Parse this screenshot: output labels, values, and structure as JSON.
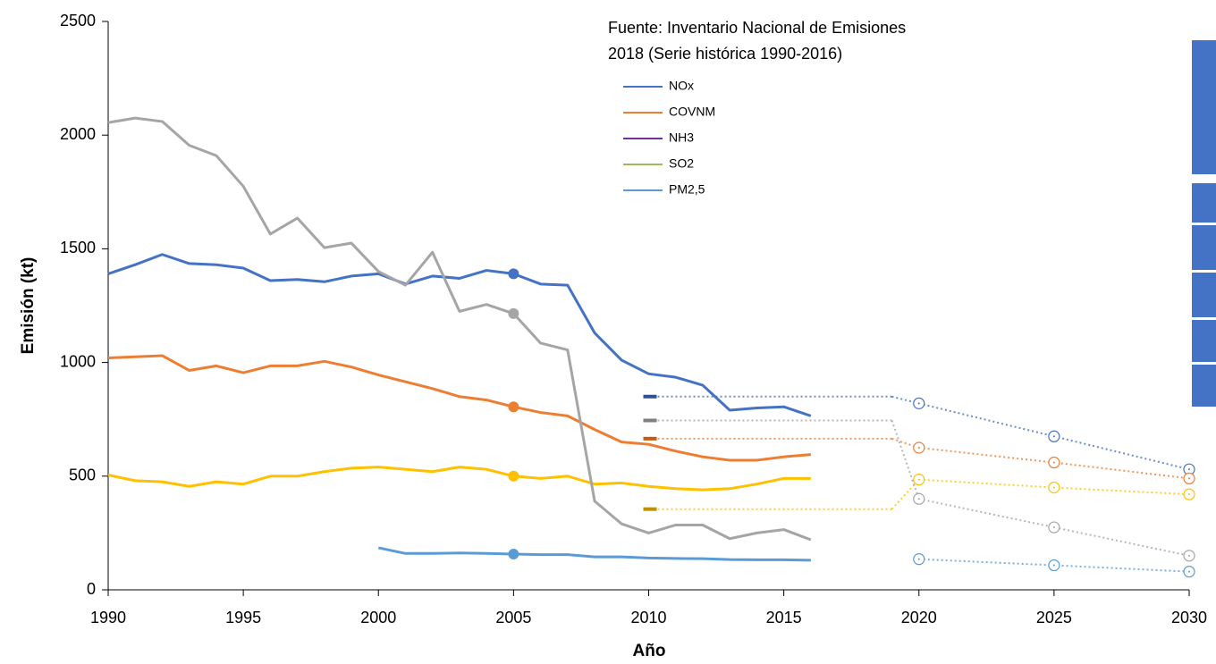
{
  "chart_data": {
    "type": "line",
    "annotation": [
      "Fuente: Inventario Nacional de Emisiones",
      "2018 (Serie histórica 1990-2016)"
    ],
    "xlabel": "Año",
    "ylabel": "Emisión (kt)",
    "xlim": [
      1990,
      2030
    ],
    "xticks": [
      1990,
      1995,
      2000,
      2005,
      2010,
      2015,
      2020,
      2025,
      2030
    ],
    "ylim": [
      0,
      2500
    ],
    "yticks": [
      0,
      500,
      1000,
      1500,
      2000,
      2500
    ],
    "base_year": 2005,
    "x": [
      1990,
      1991,
      1992,
      1993,
      1994,
      1995,
      1996,
      1997,
      1998,
      1999,
      2000,
      2001,
      2002,
      2003,
      2004,
      2005,
      2006,
      2007,
      2008,
      2009,
      2010,
      2011,
      2012,
      2013,
      2014,
      2015,
      2016
    ],
    "series": [
      {
        "name": "NOx",
        "color": "#4472c4",
        "legend_color": "#4472c4",
        "ceiling_color": "#2f528f",
        "values": [
          1390,
          1430,
          1475,
          1435,
          1430,
          1415,
          1360,
          1365,
          1355,
          1380,
          1390,
          1345,
          1380,
          1370,
          1405,
          1390,
          1345,
          1340,
          1130,
          1010,
          950,
          935,
          900,
          790,
          800,
          805,
          765
        ],
        "ceiling_x": [
          2010,
          2019
        ],
        "ceiling": [
          850,
          850
        ],
        "projection_x": [
          2020,
          2025,
          2030
        ],
        "projection": [
          820,
          675,
          530
        ]
      },
      {
        "name": "COVNM",
        "color": "#ed7d31",
        "legend_color": "#ed7d31",
        "ceiling_color": "#c55a11",
        "values": [
          1020,
          1025,
          1030,
          965,
          985,
          955,
          985,
          985,
          1005,
          980,
          945,
          915,
          885,
          850,
          835,
          805,
          780,
          765,
          705,
          650,
          640,
          610,
          585,
          570,
          570,
          585,
          595
        ],
        "ceiling_x": [
          2010,
          2019
        ],
        "ceiling": [
          665,
          665
        ],
        "projection_x": [
          2020,
          2025,
          2030
        ],
        "projection": [
          625,
          560,
          490
        ]
      },
      {
        "name": "NH3",
        "color": "#ffc000",
        "legend_color": "#7030a0",
        "ceiling_color": "#bf9000",
        "values": [
          505,
          480,
          475,
          455,
          475,
          465,
          500,
          500,
          520,
          535,
          540,
          530,
          520,
          540,
          530,
          500,
          490,
          500,
          465,
          470,
          455,
          445,
          440,
          445,
          465,
          490,
          490
        ],
        "ceiling_x": [
          2010,
          2019
        ],
        "ceiling": [
          355,
          355
        ],
        "projection_x": [
          2020,
          2025,
          2030
        ],
        "projection": [
          485,
          450,
          420
        ]
      },
      {
        "name": "SO2",
        "color": "#a5a5a5",
        "legend_color": "#9bbb59",
        "ceiling_color": "#7f7f7f",
        "values": [
          2055,
          2075,
          2060,
          1955,
          1910,
          1775,
          1565,
          1635,
          1505,
          1525,
          1400,
          1340,
          1485,
          1225,
          1255,
          1215,
          1085,
          1055,
          390,
          290,
          250,
          285,
          285,
          225,
          250,
          265,
          220
        ],
        "ceiling_x": [
          2010,
          2019
        ],
        "ceiling": [
          745,
          745
        ],
        "projection_x": [
          2020,
          2025,
          2030
        ],
        "projection": [
          400,
          275,
          150
        ]
      },
      {
        "name": "PM2,5",
        "color": "#5b9bd5",
        "legend_color": "#5b9bd5",
        "values": [
          null,
          null,
          null,
          null,
          null,
          null,
          null,
          null,
          null,
          null,
          185,
          160,
          160,
          162,
          160,
          157,
          155,
          155,
          145,
          145,
          140,
          138,
          137,
          133,
          132,
          132,
          130
        ],
        "projection_x": [
          2020,
          2025,
          2030
        ],
        "projection": [
          135,
          108,
          80
        ]
      }
    ]
  }
}
